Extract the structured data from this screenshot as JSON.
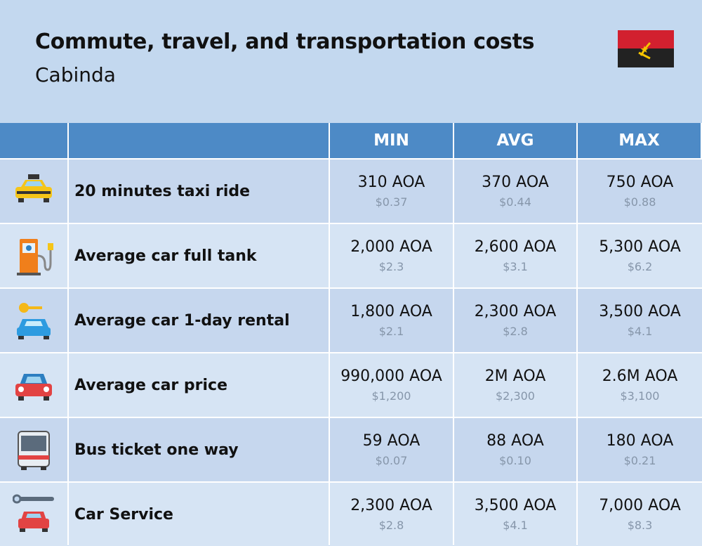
{
  "header": {
    "title": "Commute, travel, and transportation costs",
    "subtitle": "Cabinda"
  },
  "table": {
    "columns": [
      "MIN",
      "AVG",
      "MAX"
    ],
    "rows": [
      {
        "label": "20 minutes taxi ride",
        "cells": [
          {
            "local": "310 AOA",
            "usd": "$0.37"
          },
          {
            "local": "370 AOA",
            "usd": "$0.44"
          },
          {
            "local": "750 AOA",
            "usd": "$0.88"
          }
        ]
      },
      {
        "label": "Average car full tank",
        "cells": [
          {
            "local": "2,000 AOA",
            "usd": "$2.3"
          },
          {
            "local": "2,600 AOA",
            "usd": "$3.1"
          },
          {
            "local": "5,300 AOA",
            "usd": "$6.2"
          }
        ]
      },
      {
        "label": "Average car 1-day rental",
        "cells": [
          {
            "local": "1,800 AOA",
            "usd": "$2.1"
          },
          {
            "local": "2,300 AOA",
            "usd": "$2.8"
          },
          {
            "local": "3,500 AOA",
            "usd": "$4.1"
          }
        ]
      },
      {
        "label": "Average car price",
        "cells": [
          {
            "local": "990,000 AOA",
            "usd": "$1,200"
          },
          {
            "local": "2M AOA",
            "usd": "$2,300"
          },
          {
            "local": "2.6M AOA",
            "usd": "$3,100"
          }
        ]
      },
      {
        "label": "Bus ticket one way",
        "cells": [
          {
            "local": "59 AOA",
            "usd": "$0.07"
          },
          {
            "local": "88 AOA",
            "usd": "$0.10"
          },
          {
            "local": "180 AOA",
            "usd": "$0.21"
          }
        ]
      },
      {
        "label": "Car Service",
        "cells": [
          {
            "local": "2,300 AOA",
            "usd": "$2.8"
          },
          {
            "local": "3,500 AOA",
            "usd": "$4.1"
          },
          {
            "local": "7,000 AOA",
            "usd": "$8.3"
          }
        ]
      }
    ]
  }
}
